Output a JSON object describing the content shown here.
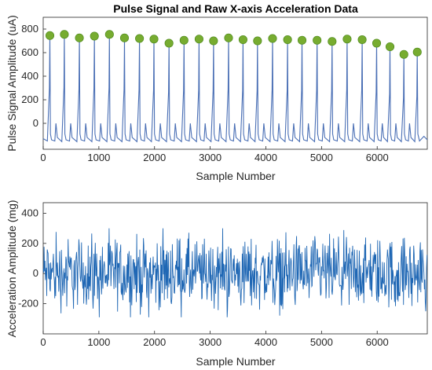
{
  "chart_data": [
    {
      "type": "line",
      "title": "Pulse Signal and Raw X-axis Acceleration Data",
      "xlabel": "Sample Number",
      "ylabel": "Pulse Signal Amplitude (uA)",
      "xlim": [
        0,
        6900
      ],
      "ylim": [
        -220,
        900
      ],
      "xticks": [
        0,
        1000,
        2000,
        3000,
        4000,
        5000,
        6000
      ],
      "yticks": [
        0,
        200,
        400,
        600,
        800
      ],
      "baseline": -150,
      "line_color": "#4a6fb5",
      "marker_color": "#77ac30",
      "series": [
        {
          "kind": "peaks",
          "x": [
            120,
            380,
            650,
            920,
            1190,
            1460,
            1730,
            1990,
            2260,
            2530,
            2800,
            3060,
            3330,
            3590,
            3850,
            4120,
            4390,
            4650,
            4920,
            5190,
            5460,
            5730,
            5990,
            6230,
            6480,
            6720
          ],
          "y": [
            745,
            755,
            725,
            740,
            755,
            725,
            720,
            715,
            680,
            705,
            715,
            700,
            725,
            710,
            700,
            720,
            710,
            705,
            705,
            695,
            715,
            710,
            680,
            650,
            585,
            605
          ]
        }
      ]
    },
    {
      "type": "line",
      "title": "",
      "xlabel": "Sample Number",
      "ylabel": "Acceleration Amplitude (mg)",
      "xlim": [
        0,
        6900
      ],
      "ylim": [
        -400,
        470
      ],
      "xticks": [
        0,
        1000,
        2000,
        3000,
        4000,
        5000,
        6000
      ],
      "yticks": [
        -200,
        0,
        200,
        400
      ],
      "line_color": "#1f67b4",
      "noise_amplitude": 270
    }
  ]
}
